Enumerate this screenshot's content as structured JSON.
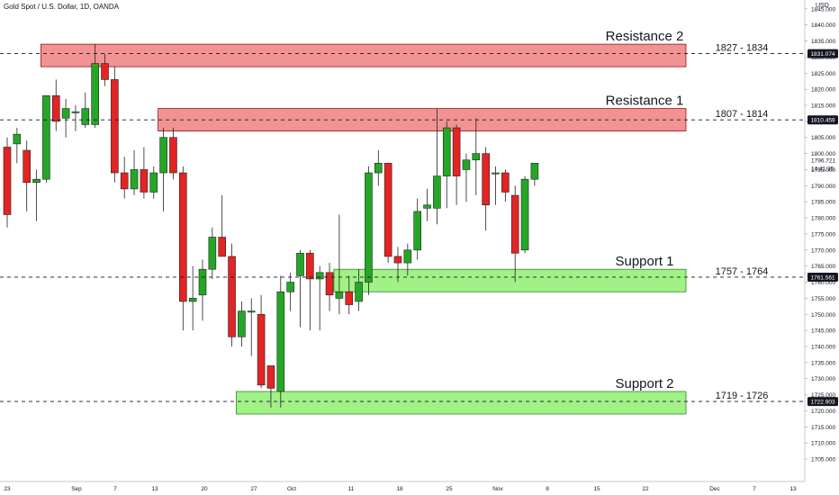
{
  "header": {
    "symbol_title": "Gold Spot / U.S. Dollar, 1D, OANDA",
    "currency": "USD"
  },
  "colors": {
    "up": "#26a627",
    "down": "#e32424",
    "resistance_fill": "#f08080",
    "resistance_edge": "#a01010",
    "support_fill": "#90ee72",
    "support_edge": "#2f8a2f",
    "price_label_bg": "#131722",
    "grid": "#ffffff"
  },
  "chart_data": {
    "type": "candlestick",
    "title": "Gold Spot / U.S. Dollar, 1D, OANDA",
    "y_axis": {
      "unit": "USD",
      "range": [
        1703,
        1847
      ],
      "ticks": [
        1705,
        1710,
        1715,
        1720,
        1725,
        1730,
        1735,
        1740,
        1745,
        1750,
        1755,
        1760,
        1765,
        1770,
        1775,
        1780,
        1785,
        1790,
        1795,
        1800,
        1805,
        1810,
        1815,
        1820,
        1825,
        1830,
        1835,
        1840,
        1845
      ],
      "tick_labels": [
        "1705.000",
        "1710.000",
        "1715.000",
        "1720.000",
        "1725.000",
        "1730.000",
        "1735.000",
        "1740.000",
        "1745.000",
        "1750.000",
        "1755.000",
        "1760.000",
        "1765.000",
        "1770.000",
        "1775.000",
        "1780.000",
        "1785.000",
        "1790.000",
        "1795.000",
        "1800.000",
        "1805.000",
        "1810.000",
        "1815.000",
        "1820.000",
        "1825.000",
        "1830.000",
        "1835.000",
        "1840.000",
        "1845.000"
      ]
    },
    "x_axis": {
      "tick_labels": [
        "23",
        "Sep",
        "7",
        "13",
        "20",
        "27",
        "Oct",
        "11",
        "18",
        "25",
        "Nov",
        "8",
        "15",
        "22",
        "Dec",
        "7",
        "13"
      ]
    },
    "candles": [
      {
        "date": "Aug 23",
        "open": 1802,
        "high": 1805,
        "low": 1777,
        "close": 1781
      },
      {
        "date": "Aug 24",
        "open": 1803,
        "high": 1808,
        "low": 1797,
        "close": 1806
      },
      {
        "date": "Aug 25",
        "open": 1801,
        "high": 1804,
        "low": 1782,
        "close": 1791
      },
      {
        "date": "Aug 26",
        "open": 1791,
        "high": 1795,
        "low": 1779,
        "close": 1792
      },
      {
        "date": "Aug 27",
        "open": 1792,
        "high": 1818,
        "low": 1791,
        "close": 1818
      },
      {
        "date": "Aug 30",
        "open": 1818,
        "high": 1823,
        "low": 1807,
        "close": 1810
      },
      {
        "date": "Aug 31",
        "open": 1811,
        "high": 1817,
        "low": 1805,
        "close": 1814
      },
      {
        "date": "Sep 1",
        "open": 1813,
        "high": 1815,
        "low": 1807,
        "close": 1813
      },
      {
        "date": "Sep 2",
        "open": 1809,
        "high": 1819,
        "low": 1808,
        "close": 1814
      },
      {
        "date": "Sep 3",
        "open": 1809,
        "high": 1834,
        "low": 1808,
        "close": 1828
      },
      {
        "date": "Sep 6",
        "open": 1828,
        "high": 1831,
        "low": 1821,
        "close": 1823
      },
      {
        "date": "Sep 7",
        "open": 1823,
        "high": 1827,
        "low": 1791,
        "close": 1794
      },
      {
        "date": "Sep 8",
        "open": 1794,
        "high": 1799,
        "low": 1786,
        "close": 1789
      },
      {
        "date": "Sep 9",
        "open": 1789,
        "high": 1801,
        "low": 1787,
        "close": 1795
      },
      {
        "date": "Sep 10",
        "open": 1795,
        "high": 1802,
        "low": 1786,
        "close": 1788
      },
      {
        "date": "Sep 13",
        "open": 1788,
        "high": 1796,
        "low": 1786,
        "close": 1794
      },
      {
        "date": "Sep 14",
        "open": 1794,
        "high": 1808,
        "low": 1782,
        "close": 1805
      },
      {
        "date": "Sep 15",
        "open": 1805,
        "high": 1808,
        "low": 1792,
        "close": 1794
      },
      {
        "date": "Sep 16",
        "open": 1794,
        "high": 1796,
        "low": 1745,
        "close": 1754
      },
      {
        "date": "Sep 17",
        "open": 1754,
        "high": 1765,
        "low": 1745,
        "close": 1755
      },
      {
        "date": "Sep 20",
        "open": 1756,
        "high": 1767,
        "low": 1748,
        "close": 1764
      },
      {
        "date": "Sep 21",
        "open": 1764,
        "high": 1777,
        "low": 1761,
        "close": 1774
      },
      {
        "date": "Sep 22",
        "open": 1774,
        "high": 1787,
        "low": 1768,
        "close": 1768
      },
      {
        "date": "Sep 23",
        "open": 1768,
        "high": 1772,
        "low": 1740,
        "close": 1743
      },
      {
        "date": "Sep 24",
        "open": 1743,
        "high": 1754,
        "low": 1740,
        "close": 1751
      },
      {
        "date": "Sep 27",
        "open": 1751,
        "high": 1755,
        "low": 1737,
        "close": 1751
      },
      {
        "date": "Sep 28",
        "open": 1750,
        "high": 1756,
        "low": 1727,
        "close": 1728
      },
      {
        "date": "Sep 29",
        "open": 1734,
        "high": 1734,
        "low": 1721,
        "close": 1727
      },
      {
        "date": "Sep 30",
        "open": 1726,
        "high": 1762,
        "low": 1721,
        "close": 1757
      },
      {
        "date": "Oct 1",
        "open": 1757,
        "high": 1763,
        "low": 1751,
        "close": 1760
      },
      {
        "date": "Oct 4",
        "open": 1762,
        "high": 1770,
        "low": 1746,
        "close": 1769
      },
      {
        "date": "Oct 5",
        "open": 1769,
        "high": 1770,
        "low": 1745,
        "close": 1761
      },
      {
        "date": "Oct 6",
        "open": 1761,
        "high": 1765,
        "low": 1745,
        "close": 1763
      },
      {
        "date": "Oct 7",
        "open": 1763,
        "high": 1766,
        "low": 1751,
        "close": 1756
      },
      {
        "date": "Oct 8",
        "open": 1755,
        "high": 1781,
        "low": 1750,
        "close": 1757
      },
      {
        "date": "Oct 11",
        "open": 1757,
        "high": 1762,
        "low": 1750,
        "close": 1753
      },
      {
        "date": "Oct 12",
        "open": 1754,
        "high": 1764,
        "low": 1751,
        "close": 1760
      },
      {
        "date": "Oct 13",
        "open": 1760,
        "high": 1796,
        "low": 1756,
        "close": 1794
      },
      {
        "date": "Oct 14",
        "open": 1794,
        "high": 1801,
        "low": 1790,
        "close": 1797
      },
      {
        "date": "Oct 15",
        "open": 1797,
        "high": 1797,
        "low": 1766,
        "close": 1768
      },
      {
        "date": "Oct 18",
        "open": 1768,
        "high": 1771,
        "low": 1760,
        "close": 1766
      },
      {
        "date": "Oct 19",
        "open": 1766,
        "high": 1772,
        "low": 1762,
        "close": 1770
      },
      {
        "date": "Oct 20",
        "open": 1770,
        "high": 1786,
        "low": 1767,
        "close": 1782
      },
      {
        "date": "Oct 21",
        "open": 1783,
        "high": 1789,
        "low": 1779,
        "close": 1784
      },
      {
        "date": "Oct 22",
        "open": 1783,
        "high": 1814,
        "low": 1778,
        "close": 1793
      },
      {
        "date": "Oct 25",
        "open": 1793,
        "high": 1810,
        "low": 1783,
        "close": 1808
      },
      {
        "date": "Oct 26",
        "open": 1808,
        "high": 1809,
        "low": 1784,
        "close": 1793
      },
      {
        "date": "Oct 27",
        "open": 1795,
        "high": 1800,
        "low": 1785,
        "close": 1798
      },
      {
        "date": "Oct 28",
        "open": 1798,
        "high": 1811,
        "low": 1787,
        "close": 1800
      },
      {
        "date": "Oct 29",
        "open": 1800,
        "high": 1802,
        "low": 1776,
        "close": 1784
      },
      {
        "date": "Nov 1",
        "open": 1794,
        "high": 1796,
        "low": 1784,
        "close": 1794
      },
      {
        "date": "Nov 2",
        "open": 1794,
        "high": 1795,
        "low": 1785,
        "close": 1788
      },
      {
        "date": "Nov 3",
        "open": 1787,
        "high": 1790,
        "low": 1760,
        "close": 1769
      },
      {
        "date": "Nov 4",
        "open": 1770,
        "high": 1793,
        "low": 1769,
        "close": 1792
      },
      {
        "date": "Nov 5",
        "open": 1792,
        "high": 1796,
        "low": 1790,
        "close": 1797
      }
    ],
    "zones": [
      {
        "label": "Resistance 2",
        "range_label": "1827 - 1834",
        "low": 1827,
        "high": 1834,
        "kind": "resistance",
        "start": "Aug 27",
        "line_price": 1831.074
      },
      {
        "label": "Resistance 1",
        "range_label": "1807 - 1814",
        "low": 1807,
        "high": 1814,
        "kind": "resistance",
        "start": "Sep 14",
        "line_price": 1810.459
      },
      {
        "label": "Support 1",
        "range_label": "1757 - 1764",
        "low": 1757,
        "high": 1764,
        "kind": "support",
        "start": "Oct 8",
        "line_price": 1761.561
      },
      {
        "label": "Support 2",
        "range_label": "1719 - 1726",
        "low": 1719,
        "high": 1726,
        "kind": "support",
        "start": "Sep 24",
        "line_price": 1722.903
      }
    ],
    "price_labels": [
      {
        "text": "1831.074",
        "value": 1831.074
      },
      {
        "text": "1810.459",
        "value": 1810.459
      },
      {
        "text": "1761.561",
        "value": 1761.561
      },
      {
        "text": "1722.903",
        "value": 1722.903
      }
    ],
    "current_price": {
      "text": "1796.721",
      "countdown": "14:41:35",
      "value": 1796.721
    }
  }
}
